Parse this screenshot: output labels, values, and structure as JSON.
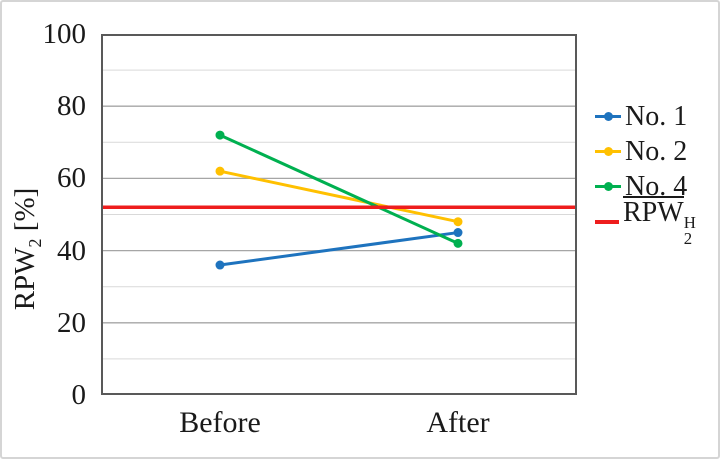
{
  "figure": {
    "background": "#ffffff",
    "border_color": "#d5d5d5",
    "text_color": "#1a1a1a"
  },
  "y_axis": {
    "title_base": "RPW",
    "title_sub": "2",
    "title_suffix": " [%]"
  },
  "legend": {
    "items": [
      {
        "label": "No. 1",
        "color": "#1e73be",
        "marker": "line-dot"
      },
      {
        "label": "No. 2",
        "color": "#ffc000",
        "marker": "line-dot"
      },
      {
        "label": "No. 4",
        "color": "#00b050",
        "marker": "line-dot"
      },
      {
        "label_base": "RPW",
        "label_sub": "2",
        "label_sup": "H",
        "overline": true,
        "color": "#ee1d1d",
        "marker": "line"
      }
    ]
  },
  "chart_data": {
    "type": "line",
    "categories": [
      "Before",
      "After"
    ],
    "series": [
      {
        "name": "No. 1",
        "color": "#1e73be",
        "values": [
          36,
          45
        ]
      },
      {
        "name": "No. 2",
        "color": "#ffc000",
        "values": [
          62,
          48
        ]
      },
      {
        "name": "No. 4",
        "color": "#00b050",
        "values": [
          72,
          42
        ]
      }
    ],
    "ref_line": {
      "name": "RPW2_H_mean",
      "value": 52,
      "color": "#ee1d1d"
    },
    "ylabel": "RPW2 [%]",
    "ylim": [
      0,
      100
    ],
    "yticks": [
      0,
      20,
      40,
      60,
      80,
      100
    ],
    "minor_gridlines": [
      10,
      30,
      50,
      70,
      90
    ],
    "grid_major_color": "#a6a6a6",
    "grid_minor_color": "#d9d9d9",
    "plot_border_color": "#595959",
    "legend_position": "right",
    "grid": true
  }
}
